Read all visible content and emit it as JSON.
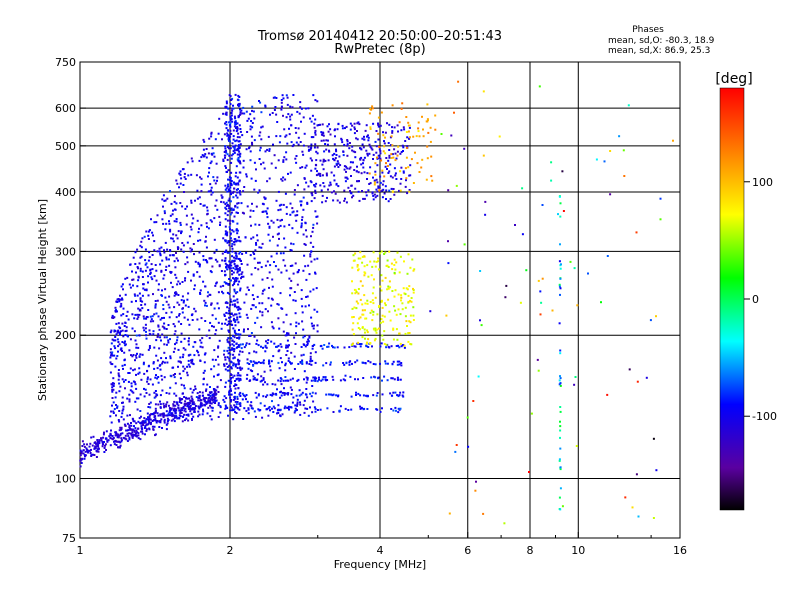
{
  "chart_data": {
    "type": "scatter",
    "title": "Tromsø 20140412 20:50:00–20:51:43",
    "subtitle": "RwPretec (8p)",
    "xlabel": "Frequency [MHz]",
    "ylabel": "Stationary phase Virtual Height [km]",
    "x_scale": "log",
    "y_scale": "log",
    "xlim": [
      1,
      16
    ],
    "ylim": [
      75,
      750
    ],
    "x_ticks": [
      1,
      2,
      4,
      6,
      8,
      10,
      16
    ],
    "y_ticks": [
      75,
      100,
      200,
      300,
      400,
      500,
      600,
      750
    ],
    "x_grid": [
      2,
      4,
      6,
      8,
      10
    ],
    "y_grid": [
      100,
      200,
      300,
      400,
      500,
      600
    ],
    "grid": true,
    "stats": {
      "title": "Phases",
      "line1": "mean, sd,O: -80.3, 18.9",
      "line2": "mean, sd,X:  86.9, 25.3"
    },
    "colorbar": {
      "label": "[deg]",
      "range": [
        -180,
        180
      ],
      "ticks": [
        100,
        0,
        -100
      ],
      "colormap": "rainbow",
      "colors": [
        "#000000",
        "#5a00a0",
        "#0000ff",
        "#00ffff",
        "#00ff00",
        "#ffff00",
        "#ff7f00",
        "#ff0000"
      ]
    },
    "series": [
      {
        "region": "low-layer-trace",
        "x_range": [
          1.0,
          1.85
        ],
        "y_range": [
          105,
          150
        ],
        "phase_deg": -110,
        "points": [
          [
            1.0,
            113
          ],
          [
            1.05,
            118
          ],
          [
            1.1,
            122
          ],
          [
            1.15,
            127
          ],
          [
            1.2,
            131
          ],
          [
            1.3,
            138
          ],
          [
            1.4,
            143
          ],
          [
            1.5,
            148
          ],
          [
            1.6,
            150
          ],
          [
            1.7,
            148
          ],
          [
            1.8,
            146
          ]
        ]
      },
      {
        "region": "f-layer-main",
        "x_range": [
          1.1,
          3.0
        ],
        "y_range": [
          130,
          640
        ],
        "phase_deg": -110
      },
      {
        "region": "f2-cusp-upper",
        "x_range": [
          2.9,
          4.8
        ],
        "y_range": [
          380,
          600
        ],
        "phase_deg": -110
      },
      {
        "region": "x-mode-trace",
        "x_range": [
          3.5,
          4.6
        ],
        "y_range": [
          190,
          290
        ],
        "phase_deg": 80
      }
    ]
  }
}
